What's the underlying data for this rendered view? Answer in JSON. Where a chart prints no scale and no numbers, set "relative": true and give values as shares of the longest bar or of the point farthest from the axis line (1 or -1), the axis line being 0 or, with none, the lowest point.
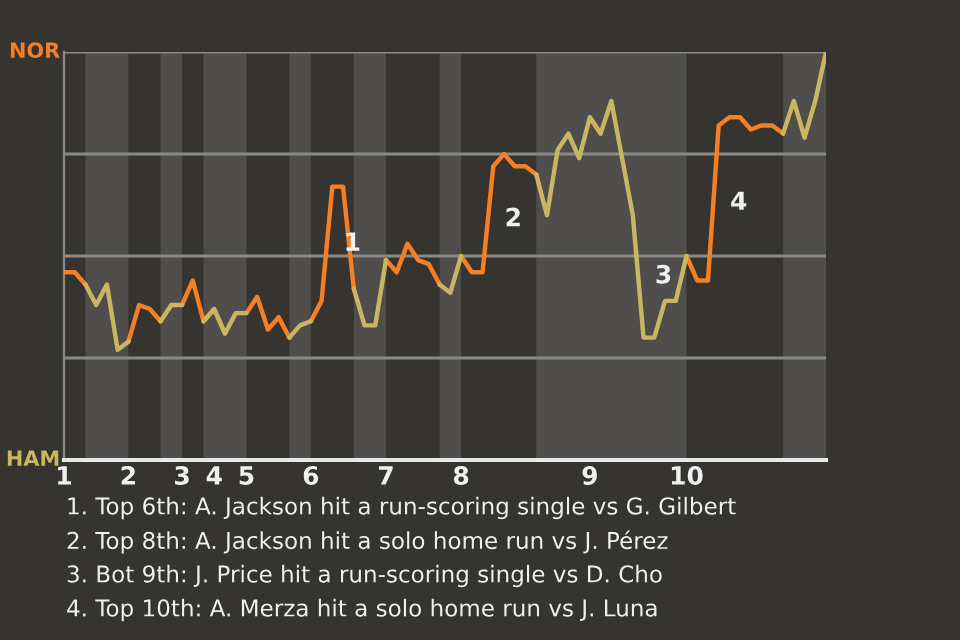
{
  "chart_data": {
    "type": "line",
    "relative": true,
    "categories": [
      "1",
      null,
      null,
      null,
      null,
      null,
      "2",
      null,
      null,
      null,
      null,
      "3",
      null,
      null,
      "4",
      null,
      null,
      "5",
      null,
      null,
      null,
      null,
      null,
      "6",
      null,
      null,
      null,
      null,
      null,
      null,
      "7",
      null,
      null,
      null,
      null,
      null,
      null,
      "8",
      null,
      null,
      null,
      null,
      null,
      null,
      null,
      null,
      null,
      null,
      null,
      "9",
      null,
      null,
      null,
      null,
      null,
      null,
      null,
      null,
      "10",
      null,
      null,
      null,
      null,
      null,
      null,
      null,
      null,
      null,
      null,
      null,
      null,
      null
    ],
    "grid": "y",
    "series": [
      {
        "color": "#f47f24",
        "values": [
          0.46,
          0.46,
          0.43,
          null,
          null,
          null,
          0.29,
          0.38,
          0.37,
          0.34,
          null,
          0.38,
          0.44,
          0.34,
          0.37,
          0.31,
          null,
          0.36,
          0.4,
          0.32,
          0.35,
          0.3,
          null,
          0.34,
          0.39,
          0.67,
          0.67,
          0.42,
          null,
          null,
          0.49,
          0.46,
          0.53,
          0.49,
          0.48,
          0.43,
          null,
          0.5,
          0.46,
          0.46,
          0.72,
          0.75,
          0.72,
          0.72,
          0.7,
          null,
          null,
          null,
          null,
          0.84,
          0.8,
          null,
          null,
          null,
          null,
          null,
          null,
          null,
          0.5,
          0.44,
          0.44,
          0.82,
          0.84,
          0.84,
          0.81,
          0.82,
          0.82,
          0.8,
          null,
          null,
          null,
          null
        ]
      },
      {
        "color": "#c9b661",
        "values": [
          null,
          null,
          0.43,
          0.38,
          0.43,
          0.27,
          0.29,
          null,
          null,
          0.34,
          0.38,
          0.38,
          null,
          0.34,
          0.37,
          0.31,
          0.36,
          0.36,
          null,
          null,
          null,
          0.3,
          0.33,
          0.34,
          null,
          null,
          null,
          0.42,
          0.33,
          0.33,
          0.49,
          null,
          null,
          null,
          null,
          0.43,
          0.41,
          0.5,
          null,
          null,
          null,
          null,
          null,
          null,
          0.7,
          0.6,
          0.76,
          0.8,
          0.74,
          0.84,
          0.8,
          0.88,
          0.74,
          0.6,
          0.3,
          0.3,
          0.39,
          0.39,
          0.5,
          null,
          null,
          null,
          null,
          null,
          null,
          null,
          null,
          0.8,
          0.88,
          0.79,
          0.88,
          1.0
        ]
      }
    ],
    "annotations": [
      "NOR",
      "HAM",
      "1",
      "2",
      "3",
      "4",
      "1. Top 6th: A. Jackson hit a run-scoring single vs G. Gilbert",
      "2. Top 8th: A. Jackson hit a solo home run vs J. Pérez",
      "3. Bot 9th: J. Price hit a run-scoring single vs D. Cho",
      "4. Top 10th: A. Merza hit a solo home run vs J. Luna"
    ]
  }
}
